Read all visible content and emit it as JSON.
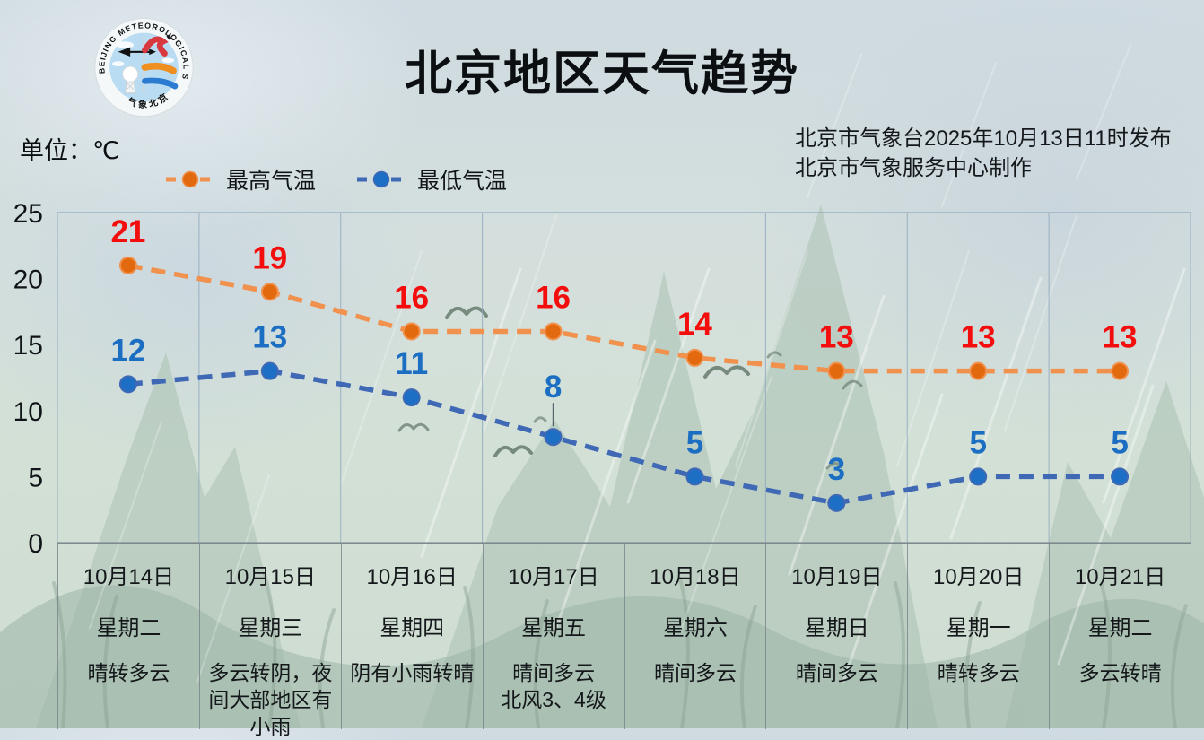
{
  "title": "北京地区天气趋势",
  "unit_label": "单位：℃",
  "issued": {
    "line1": "北京市气象台2025年10月13日11时发布",
    "line2": "北京市气象服务中心制作"
  },
  "logo": {
    "ring_text_top": "BEIJING METEOROLOGICAL SERVICE",
    "ring_text_bottom": "气象北京"
  },
  "colors": {
    "high_line": "#f0914e",
    "high_marker": "#e2690e",
    "high_label": "#f40d0d",
    "low_line": "#3f68b5",
    "low_marker": "#1c6fc4",
    "low_label": "#1b6ec2",
    "grid": "#93abbf",
    "axis_text": "#101418"
  },
  "chart_data": {
    "type": "line",
    "title": "北京地区天气趋势",
    "xlabel": "",
    "ylabel": "℃",
    "ylim": [
      0,
      25
    ],
    "yticks": [
      0,
      5,
      10,
      15,
      20,
      25
    ],
    "grid": "vertical-only",
    "legend_position": "top-left",
    "categories": [
      "10月14日",
      "10月15日",
      "10月16日",
      "10月17日",
      "10月18日",
      "10月19日",
      "10月20日",
      "10月21日"
    ],
    "series": [
      {
        "name": "最高气温",
        "values": [
          21,
          19,
          16,
          16,
          14,
          13,
          13,
          13
        ],
        "line_color": "#f0914e",
        "marker_color": "#e2690e",
        "label_color": "#f40d0d",
        "label_leaders": []
      },
      {
        "name": "最低气温",
        "values": [
          12,
          13,
          11,
          8,
          5,
          3,
          5,
          5
        ],
        "line_color": "#3f68b5",
        "marker_color": "#1c6fc4",
        "label_color": "#1b6ec2",
        "label_leaders": [
          3
        ]
      }
    ],
    "days": [
      {
        "date": "10月14日",
        "weekday": "星期二",
        "weather": "晴转多云"
      },
      {
        "date": "10月15日",
        "weekday": "星期三",
        "weather": "多云转阴，夜间大部地区有小雨"
      },
      {
        "date": "10月16日",
        "weekday": "星期四",
        "weather": "阴有小雨转晴"
      },
      {
        "date": "10月17日",
        "weekday": "星期五",
        "weather": "晴间多云\n北风3、4级"
      },
      {
        "date": "10月18日",
        "weekday": "星期六",
        "weather": "晴间多云"
      },
      {
        "date": "10月19日",
        "weekday": "星期日",
        "weather": "晴间多云"
      },
      {
        "date": "10月20日",
        "weekday": "星期一",
        "weather": "晴转多云"
      },
      {
        "date": "10月21日",
        "weekday": "星期二",
        "weather": "多云转晴"
      }
    ]
  }
}
